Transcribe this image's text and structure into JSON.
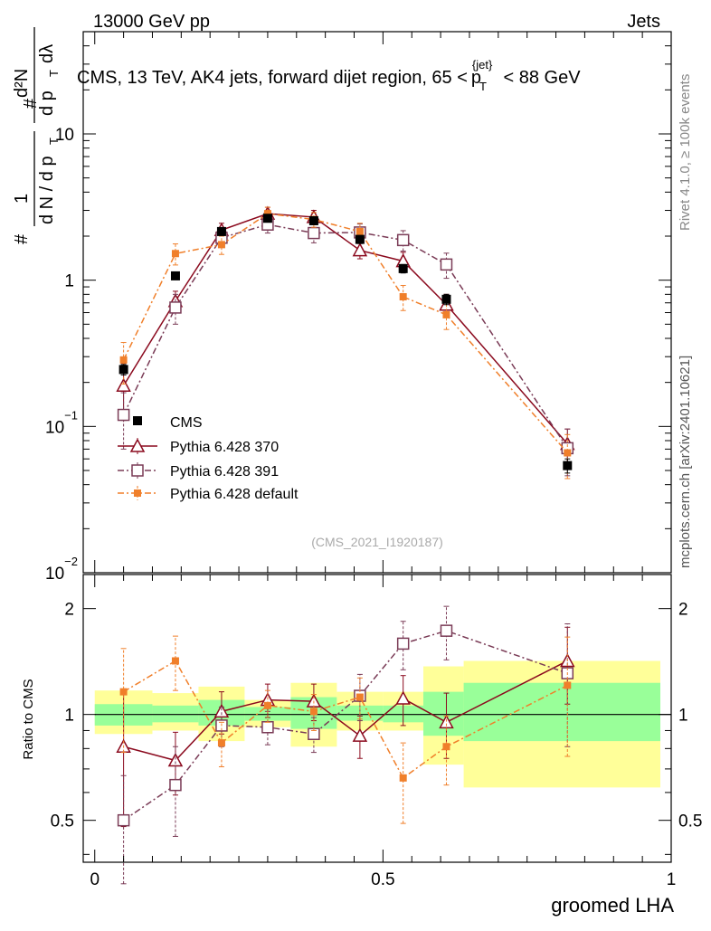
{
  "header": {
    "energy": "13000 GeV pp",
    "category": "Jets"
  },
  "side_labels": {
    "rivet": "Rivet 4.1.0, ≥ 100k events",
    "mcplots": "mcplots.cern.ch [arXiv:2401.10621]"
  },
  "chart_data": [
    {
      "type": "line",
      "panel": "main",
      "title": "CMS, 13 TeV, AK4 jets, forward dijet region, 65 < p_T^{jet} < 88 GeV",
      "title_text": {
        "prefix": "CMS, 13 TeV, AK4 jets, forward dijet region, 65 <",
        "var": "p",
        "sub": "T",
        "sup": "{jet}",
        "suffix": "< 88 GeV"
      },
      "ylabel": "1/dN/dp_T · d²N/dp_T dλ",
      "ylabel_text": {
        "one": "1",
        "hash": "#",
        "dN": "d N / d p",
        "T": "T",
        "d2N": "d²N",
        "dpdl": "d p",
        "dl": "dλ"
      },
      "analysis_id": "(CMS_2021_I1920187)",
      "yscale": "log",
      "ylim": [
        0.01,
        50
      ],
      "xlim": [
        -0.02,
        1.0
      ],
      "ytick_labels": [
        {
          "value": 0.01,
          "base": "10",
          "exp": "−2"
        },
        {
          "value": 0.1,
          "base": "10",
          "exp": "−1"
        },
        {
          "value": 1,
          "base": "1",
          "exp": ""
        },
        {
          "value": 10,
          "base": "10",
          "exp": ""
        }
      ],
      "legend_position": "lower-left",
      "series": [
        {
          "name": "CMS",
          "color": "#000000",
          "marker": "filled-square",
          "x": [
            0.05,
            0.14,
            0.22,
            0.3,
            0.38,
            0.46,
            0.535,
            0.61,
            0.82
          ],
          "y": [
            0.245,
            1.07,
            2.15,
            2.65,
            2.55,
            1.9,
            1.2,
            0.74,
            0.054
          ],
          "yerr": [
            0.02,
            0.06,
            0.12,
            0.15,
            0.15,
            0.12,
            0.08,
            0.06,
            0.006
          ]
        },
        {
          "name": "Pythia 6.428 370",
          "color": "#8b0a1e",
          "marker": "open-triangle",
          "line": "solid",
          "x": [
            0.05,
            0.14,
            0.22,
            0.3,
            0.38,
            0.46,
            0.535,
            0.61,
            0.82
          ],
          "y": [
            0.19,
            0.72,
            2.2,
            2.85,
            2.7,
            1.6,
            1.35,
            0.68,
            0.076
          ],
          "yerr": [
            0.08,
            0.12,
            0.25,
            0.3,
            0.3,
            0.2,
            0.2,
            0.12,
            0.02
          ]
        },
        {
          "name": "Pythia 6.428 391",
          "color": "#7a3b56",
          "marker": "open-square",
          "line": "dashdot",
          "x": [
            0.05,
            0.14,
            0.22,
            0.3,
            0.38,
            0.46,
            0.535,
            0.61,
            0.82
          ],
          "y": [
            0.12,
            0.65,
            1.95,
            2.4,
            2.1,
            2.12,
            1.88,
            1.28,
            0.071
          ],
          "yerr": [
            0.05,
            0.15,
            0.25,
            0.3,
            0.3,
            0.3,
            0.3,
            0.25,
            0.025
          ]
        },
        {
          "name": "Pythia 6.428 default",
          "color": "#f07f2a",
          "marker": "filled-square-small",
          "line": "dashdot",
          "x": [
            0.05,
            0.14,
            0.22,
            0.3,
            0.38,
            0.46,
            0.535,
            0.61,
            0.82
          ],
          "y": [
            0.285,
            1.52,
            1.75,
            2.85,
            2.6,
            2.15,
            0.77,
            0.58,
            0.066
          ],
          "yerr": [
            0.09,
            0.25,
            0.25,
            0.3,
            0.3,
            0.3,
            0.15,
            0.12,
            0.022
          ]
        }
      ]
    },
    {
      "type": "line",
      "panel": "ratio",
      "ylabel": "Ratio to CMS",
      "xlabel": "groomed LHA",
      "yscale": "log",
      "ylim": [
        0.38,
        2.5
      ],
      "xlim": [
        -0.02,
        1.0
      ],
      "reference_line": 1,
      "ytick_labels": [
        {
          "value": 0.5,
          "label": "0.5"
        },
        {
          "value": 1,
          "label": "1"
        },
        {
          "value": 2,
          "label": "2"
        }
      ],
      "xtick_labels": [
        {
          "value": 0,
          "label": "0"
        },
        {
          "value": 0.5,
          "label": "0.5"
        },
        {
          "value": 1,
          "label": "1"
        }
      ],
      "uncertainty_bands": [
        {
          "x0": 0.0,
          "x1": 0.1,
          "yellow": [
            0.88,
            1.17
          ],
          "green": [
            0.93,
            1.07
          ]
        },
        {
          "x0": 0.1,
          "x1": 0.18,
          "yellow": [
            0.9,
            1.15
          ],
          "green": [
            0.95,
            1.06
          ]
        },
        {
          "x0": 0.18,
          "x1": 0.26,
          "yellow": [
            0.84,
            1.2
          ],
          "green": [
            0.93,
            1.1
          ]
        },
        {
          "x0": 0.26,
          "x1": 0.34,
          "yellow": [
            0.92,
            1.1
          ],
          "green": [
            0.96,
            1.05
          ]
        },
        {
          "x0": 0.34,
          "x1": 0.42,
          "yellow": [
            0.81,
            1.23
          ],
          "green": [
            0.91,
            1.12
          ]
        },
        {
          "x0": 0.42,
          "x1": 0.5,
          "yellow": [
            0.9,
            1.16
          ],
          "green": [
            0.96,
            1.06
          ]
        },
        {
          "x0": 0.5,
          "x1": 0.57,
          "yellow": [
            0.9,
            1.16
          ],
          "green": [
            0.95,
            1.06
          ]
        },
        {
          "x0": 0.57,
          "x1": 0.64,
          "yellow": [
            0.72,
            1.37
          ],
          "green": [
            0.87,
            1.16
          ]
        },
        {
          "x0": 0.64,
          "x1": 1.0,
          "yellow": [
            0.62,
            1.42
          ],
          "green": [
            0.84,
            1.23
          ]
        }
      ],
      "series": [
        {
          "name": "Pythia 6.428 370",
          "x": [
            0.05,
            0.14,
            0.22,
            0.3,
            0.38,
            0.46,
            0.535,
            0.61,
            0.82
          ],
          "y": [
            0.81,
            0.74,
            1.02,
            1.1,
            1.09,
            0.87,
            1.11,
            0.95,
            1.42
          ],
          "yerr": [
            0.33,
            0.15,
            0.14,
            0.12,
            0.13,
            0.12,
            0.18,
            0.2,
            0.35
          ]
        },
        {
          "name": "Pythia 6.428 391",
          "x": [
            0.05,
            0.14,
            0.22,
            0.3,
            0.38,
            0.46,
            0.535,
            0.61,
            0.82
          ],
          "y": [
            0.5,
            0.63,
            0.93,
            0.92,
            0.88,
            1.13,
            1.59,
            1.73,
            1.31
          ],
          "yerr": [
            0.17,
            0.18,
            0.12,
            0.1,
            0.1,
            0.17,
            0.25,
            0.3,
            0.5
          ]
        },
        {
          "name": "Pythia 6.428 default",
          "x": [
            0.05,
            0.14,
            0.22,
            0.3,
            0.38,
            0.46,
            0.535,
            0.61,
            0.82
          ],
          "y": [
            1.16,
            1.42,
            0.83,
            1.06,
            1.02,
            1.12,
            0.66,
            0.81,
            1.21
          ],
          "yerr": [
            0.38,
            0.25,
            0.12,
            0.11,
            0.12,
            0.15,
            0.17,
            0.18,
            0.45
          ]
        }
      ]
    }
  ]
}
